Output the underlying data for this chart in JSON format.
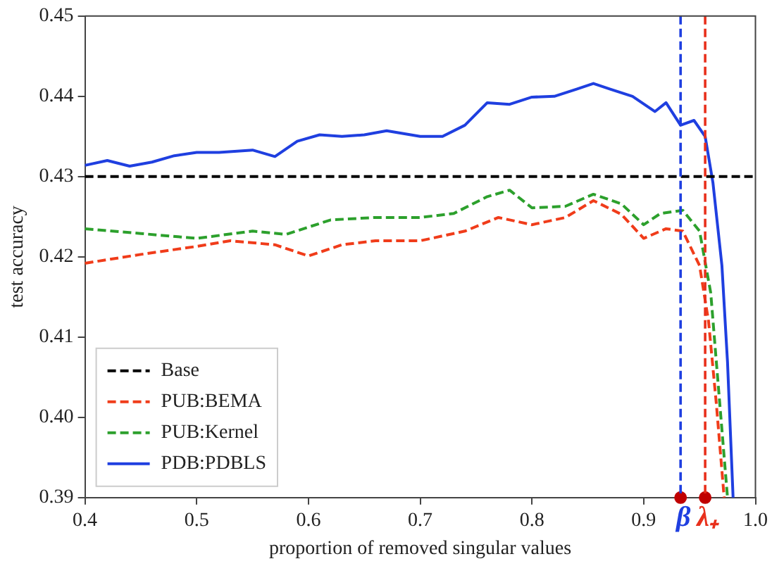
{
  "chart_data": {
    "type": "line",
    "xlabel": "proportion of removed singular values",
    "ylabel": "test accuracy",
    "xlim": [
      0.4,
      1.0
    ],
    "xticks": [
      0.4,
      0.5,
      0.6,
      0.7,
      0.8,
      0.9,
      {
        "value": 1.0,
        "label": "1.0"
      }
    ],
    "ylim": [
      0.39,
      0.45
    ],
    "yticks": [
      0.39,
      {
        "value": 0.4,
        "label": "0.40"
      },
      0.41,
      0.42,
      0.43,
      0.44,
      0.45
    ],
    "legend": "bottom left",
    "grid": false,
    "marker": "none",
    "ref_lines": [
      {
        "axis": "x",
        "value": 0.933,
        "label": "β",
        "color": "#1f3fe0",
        "line_style": "dashed"
      },
      {
        "axis": "x",
        "value": 0.955,
        "label": "λ₊",
        "color": "#e8301c",
        "line_style": "dashed"
      }
    ],
    "series": [
      {
        "type": "scatter",
        "marker": "circle",
        "color": "#c00000",
        "x": [
          0.933,
          0.955
        ],
        "values": [
          0.39,
          0.39
        ]
      },
      {
        "name": "Base",
        "color": "#000000",
        "line_style": "dashed",
        "x": [
          0.4,
          1.0
        ],
        "values": [
          0.43,
          0.43
        ]
      },
      {
        "name": "PUB:BEMA",
        "color": "#f03c1a",
        "line_style": "dashed",
        "x": [
          0.4,
          0.45,
          0.5,
          0.53,
          0.57,
          0.6,
          0.63,
          0.66,
          0.7,
          0.74,
          0.77,
          0.8,
          0.83,
          0.855,
          0.88,
          0.9,
          0.92,
          0.935,
          0.95,
          0.958,
          0.965,
          0.972
        ],
        "values": [
          0.4192,
          0.4203,
          0.4213,
          0.422,
          0.4215,
          0.4201,
          0.4215,
          0.422,
          0.422,
          0.4232,
          0.4249,
          0.424,
          0.4249,
          0.427,
          0.4253,
          0.4223,
          0.4235,
          0.4232,
          0.4189,
          0.412,
          0.4017,
          0.39
        ]
      },
      {
        "name": "PUB:Kernel",
        "color": "#2ca02c",
        "line_style": "dashed",
        "x": [
          0.4,
          0.45,
          0.5,
          0.55,
          0.58,
          0.62,
          0.66,
          0.7,
          0.73,
          0.76,
          0.78,
          0.8,
          0.83,
          0.855,
          0.88,
          0.9,
          0.915,
          0.935,
          0.95,
          0.96,
          0.965,
          0.975
        ],
        "values": [
          0.4235,
          0.4229,
          0.4223,
          0.4232,
          0.4228,
          0.4246,
          0.4249,
          0.4249,
          0.4254,
          0.4275,
          0.4283,
          0.4261,
          0.4263,
          0.4278,
          0.4266,
          0.424,
          0.4254,
          0.4258,
          0.4232,
          0.4155,
          0.4069,
          0.39
        ]
      },
      {
        "name": "PDB:PDBLS",
        "color": "#1f3fe0",
        "line_style": "solid",
        "x": [
          0.4,
          0.42,
          0.44,
          0.46,
          0.48,
          0.5,
          0.52,
          0.55,
          0.57,
          0.59,
          0.61,
          0.63,
          0.65,
          0.67,
          0.7,
          0.72,
          0.74,
          0.76,
          0.78,
          0.8,
          0.82,
          0.84,
          0.855,
          0.87,
          0.89,
          0.91,
          0.92,
          0.933,
          0.945,
          0.955,
          0.962,
          0.97,
          0.975,
          0.98
        ],
        "values": [
          0.4314,
          0.432,
          0.4313,
          0.4318,
          0.4326,
          0.433,
          0.433,
          0.4333,
          0.4325,
          0.4344,
          0.4352,
          0.435,
          0.4352,
          0.4357,
          0.435,
          0.435,
          0.4364,
          0.4392,
          0.439,
          0.4399,
          0.44,
          0.4409,
          0.4416,
          0.4409,
          0.44,
          0.4381,
          0.4392,
          0.4364,
          0.437,
          0.435,
          0.4292,
          0.4189,
          0.4069,
          0.39
        ]
      }
    ]
  }
}
